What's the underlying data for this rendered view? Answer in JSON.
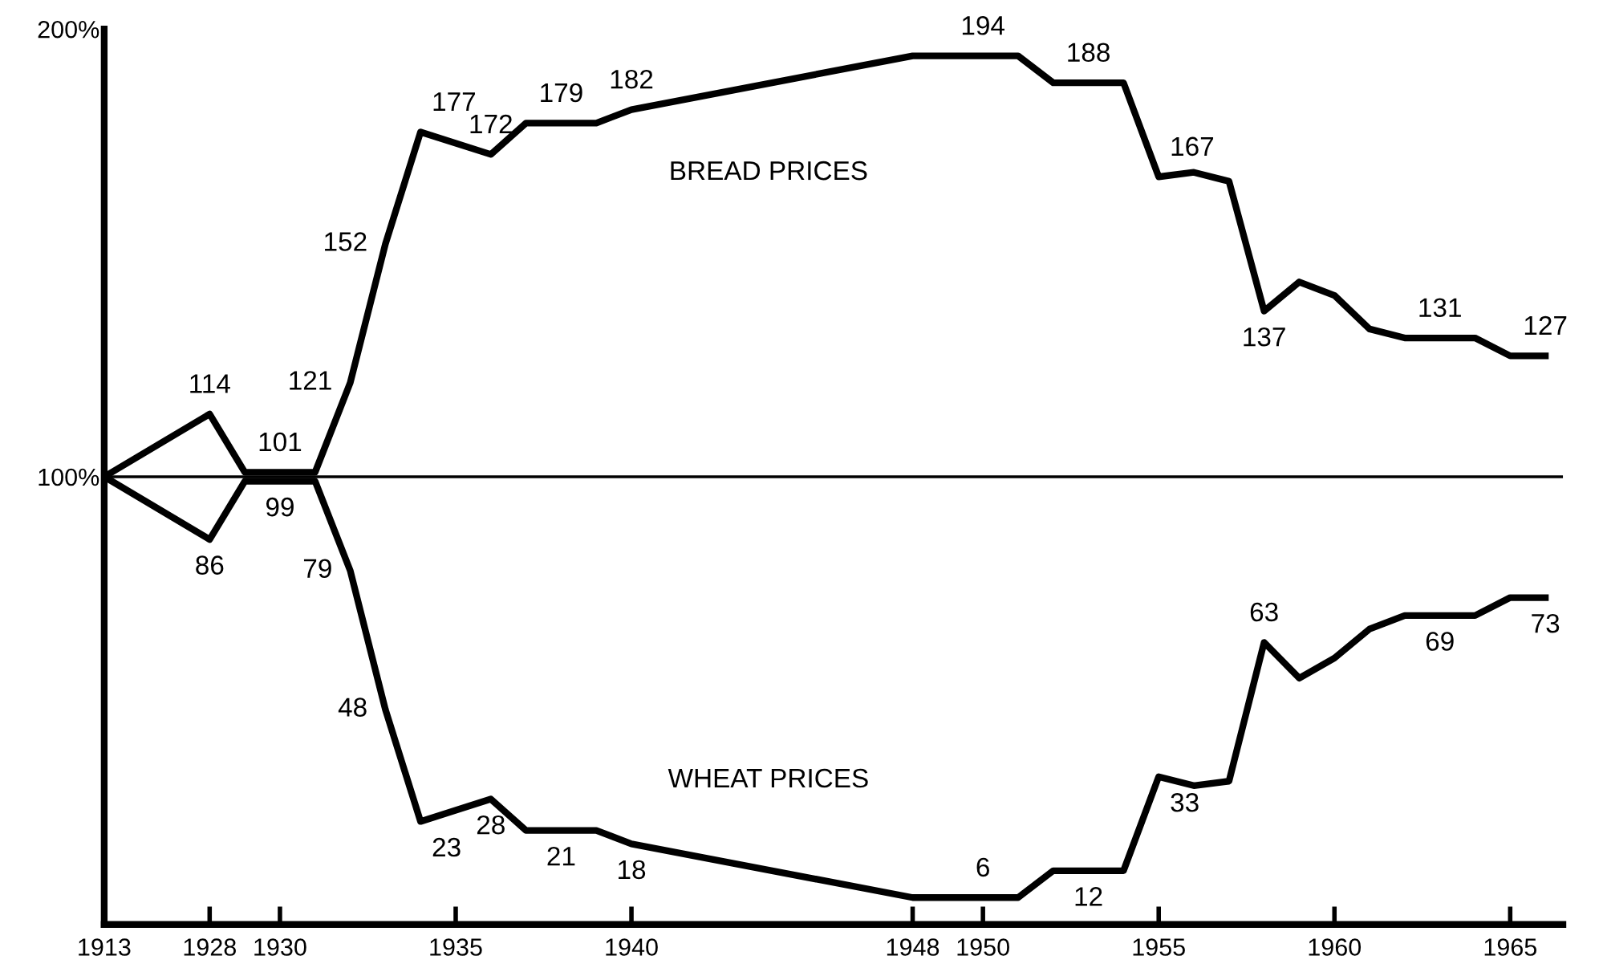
{
  "chart_data": {
    "type": "line",
    "categories": [
      "1913",
      null,
      null,
      "1928",
      null,
      "1930",
      null,
      null,
      null,
      null,
      "1935",
      null,
      null,
      null,
      null,
      "1940",
      null,
      null,
      null,
      null,
      null,
      null,
      null,
      "1948",
      null,
      "1950",
      null,
      null,
      null,
      null,
      "1955",
      null,
      null,
      null,
      null,
      "1960",
      null,
      null,
      null,
      null,
      "1965",
      null
    ],
    "series": [
      {
        "name": "BREAD PRICES",
        "color": "#000000",
        "values": [
          100,
          null,
          null,
          114,
          101,
          101,
          101,
          121,
          152,
          177,
          null,
          172,
          179,
          179,
          179,
          182,
          null,
          null,
          null,
          null,
          null,
          null,
          null,
          194,
          194,
          194,
          194,
          188,
          188,
          188,
          167,
          168,
          166,
          137,
          143.5,
          140.5,
          133,
          131,
          131,
          131,
          127,
          127
        ],
        "value_labels": [
          null,
          null,
          null,
          "114",
          null,
          "101",
          null,
          "121",
          "152",
          "177",
          null,
          "172",
          null,
          "179",
          null,
          "182",
          null,
          null,
          null,
          null,
          null,
          null,
          null,
          null,
          null,
          "194",
          null,
          null,
          "188",
          null,
          "167",
          null,
          null,
          "137",
          null,
          null,
          null,
          null,
          "131",
          null,
          null,
          "127"
        ]
      },
      {
        "name": "WHEAT PRICES",
        "color": "#000000",
        "values": [
          100,
          null,
          null,
          86,
          99,
          99,
          99,
          79,
          48,
          23,
          null,
          28,
          21,
          21,
          21,
          18,
          null,
          null,
          null,
          null,
          null,
          null,
          null,
          6,
          6,
          6,
          6,
          12,
          12,
          12,
          33,
          31,
          32,
          63,
          55,
          59.5,
          66,
          69,
          69,
          69,
          73,
          73
        ],
        "value_labels": [
          null,
          null,
          null,
          "86",
          null,
          "99",
          null,
          "79",
          "48",
          "23",
          null,
          "28",
          null,
          "21",
          null,
          "18",
          null,
          null,
          null,
          null,
          null,
          null,
          null,
          null,
          null,
          "6",
          null,
          null,
          "12",
          null,
          "33",
          null,
          null,
          "63",
          null,
          null,
          null,
          null,
          "69",
          null,
          null,
          "73"
        ]
      }
    ],
    "ylim": [
      0,
      200
    ],
    "yticks": [
      {
        "value": 100,
        "label": "100%"
      },
      {
        "value": 200,
        "label": "200%"
      }
    ],
    "ref_lines": [
      {
        "axis": "y",
        "value": 100,
        "color": "#000000"
      }
    ],
    "grid": false,
    "legend": false,
    "marker": "none",
    "line_style": "solid"
  }
}
